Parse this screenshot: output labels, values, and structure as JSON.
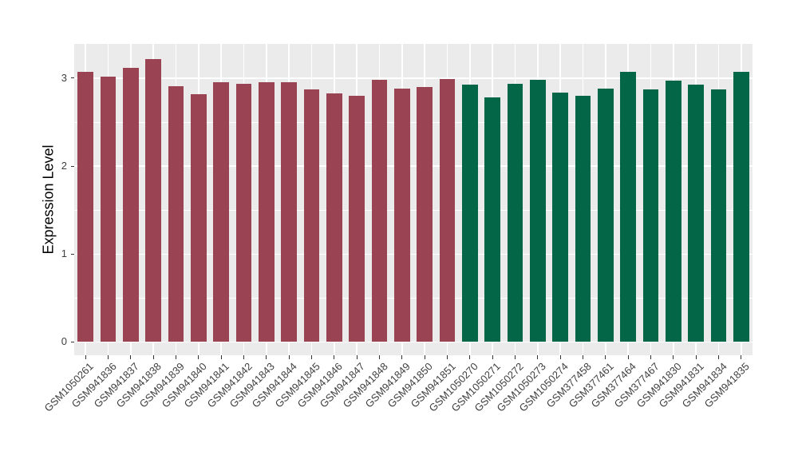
{
  "chart_data": {
    "type": "bar",
    "title": "",
    "xlabel": "",
    "ylabel": "Expression Level",
    "categories": [
      "GSM1050261",
      "GSM941836",
      "GSM941837",
      "GSM941838",
      "GSM941839",
      "GSM941840",
      "GSM941841",
      "GSM941842",
      "GSM941843",
      "GSM941844",
      "GSM941845",
      "GSM941846",
      "GSM941847",
      "GSM941848",
      "GSM941849",
      "GSM941850",
      "GSM941851",
      "GSM1050270",
      "GSM1050271",
      "GSM1050272",
      "GSM1050273",
      "GSM1050274",
      "GSM377458",
      "GSM377461",
      "GSM377464",
      "GSM377467",
      "GSM941830",
      "GSM941831",
      "GSM941834",
      "GSM941835"
    ],
    "values": [
      3.07,
      3.02,
      3.12,
      3.22,
      2.91,
      2.82,
      2.95,
      2.94,
      2.95,
      2.95,
      2.87,
      2.83,
      2.8,
      2.98,
      2.88,
      2.9,
      2.99,
      2.93,
      2.78,
      2.94,
      2.98,
      2.84,
      2.8,
      2.88,
      3.07,
      2.87,
      2.97,
      2.93,
      2.87,
      3.07
    ],
    "bar_groups": [
      "group1",
      "group1",
      "group1",
      "group1",
      "group1",
      "group1",
      "group1",
      "group1",
      "group1",
      "group1",
      "group1",
      "group1",
      "group1",
      "group1",
      "group1",
      "group1",
      "group1",
      "group2",
      "group2",
      "group2",
      "group2",
      "group2",
      "group2",
      "group2",
      "group2",
      "group2",
      "group2",
      "group2",
      "group2",
      "group2"
    ],
    "group_colors": {
      "group1": "#9A4352",
      "group2": "#026647"
    },
    "yticks": [
      0,
      1,
      2,
      3
    ],
    "yticks_minor": [
      0.5,
      1.5,
      2.5
    ],
    "ylim": [
      -0.15,
      3.39
    ],
    "bar_rel_width": 0.7,
    "grid": true,
    "legend_position": "none",
    "panel_background": "#EBEBEB",
    "gridline_color": "#FFFFFF"
  }
}
